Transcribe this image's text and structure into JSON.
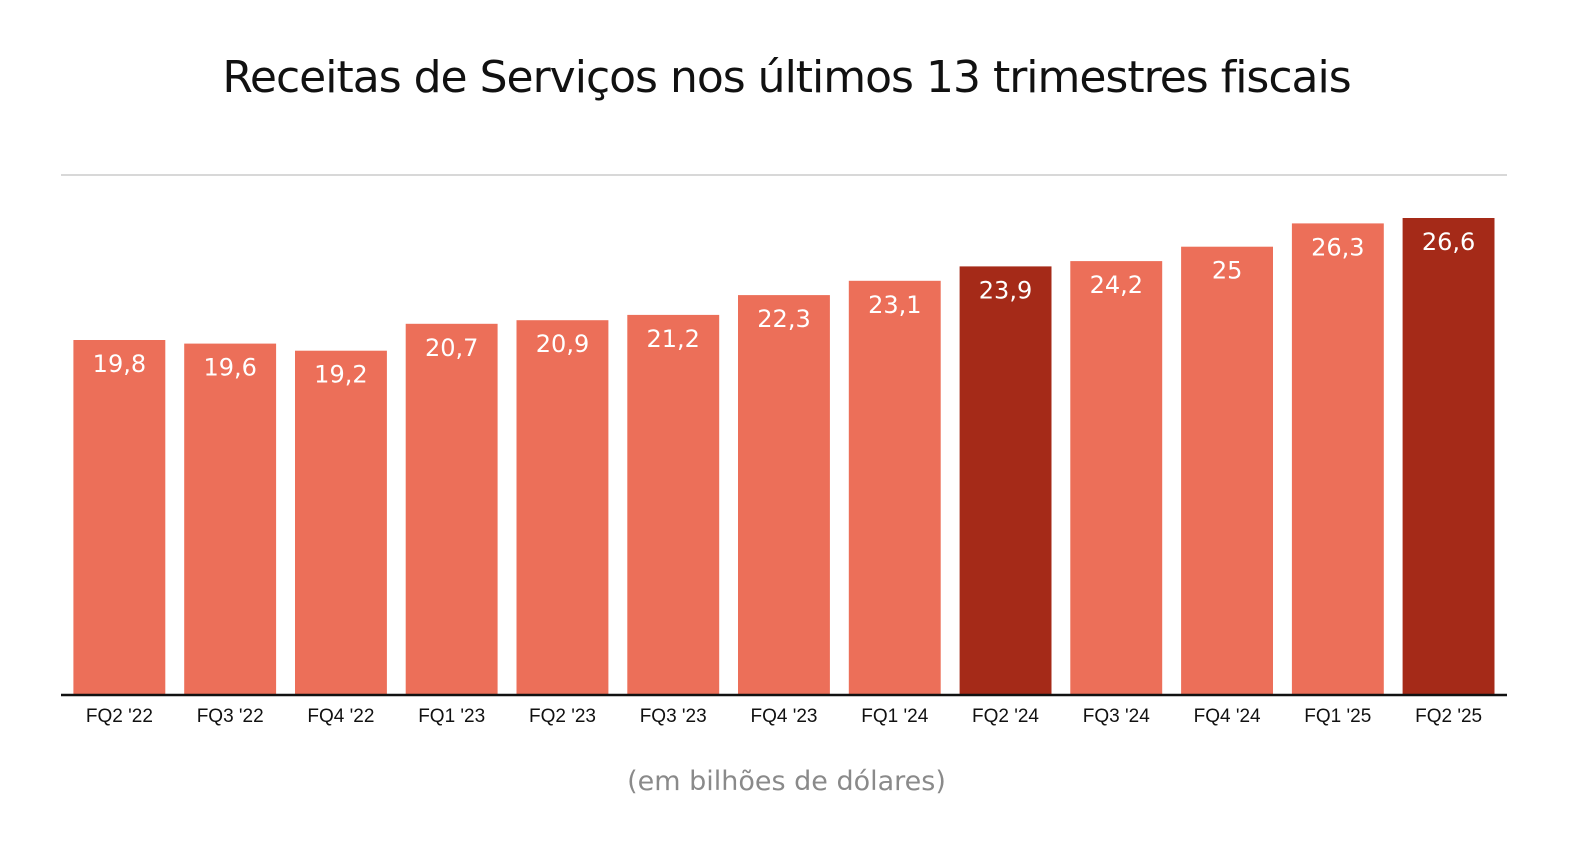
{
  "chart_data": {
    "type": "bar",
    "title": "Receitas de Serviços nos últimos 13 trimestres fiscais",
    "note": "(em bilhões de dólares)",
    "categories": [
      "FQ2 '22",
      "FQ3 '22",
      "FQ4 '22",
      "FQ1 '23",
      "FQ2 '23",
      "FQ3 '23",
      "FQ4 '23",
      "FQ1 '24",
      "FQ2 '24",
      "FQ3 '24",
      "FQ4 '24",
      "FQ1 '25",
      "FQ2 '25"
    ],
    "values": [
      19.8,
      19.6,
      19.2,
      20.7,
      20.9,
      21.2,
      22.3,
      23.1,
      23.9,
      24.2,
      25,
      26.3,
      26.6
    ],
    "value_labels": [
      "19,8",
      "19,6",
      "19,2",
      "20,7",
      "20,9",
      "21,2",
      "22,3",
      "23,1",
      "23,9",
      "24,2",
      "25",
      "26,3",
      "26,6"
    ],
    "highlighted": [
      "FQ2 '24",
      "FQ2 '25"
    ],
    "ylim": [
      0,
      29
    ],
    "grid": false,
    "colors": {
      "bar": "#ec6f59",
      "highlight": "#a52a18",
      "axis": "#111111",
      "top_line": "#cccccc",
      "note": "#8a8a8a"
    }
  }
}
